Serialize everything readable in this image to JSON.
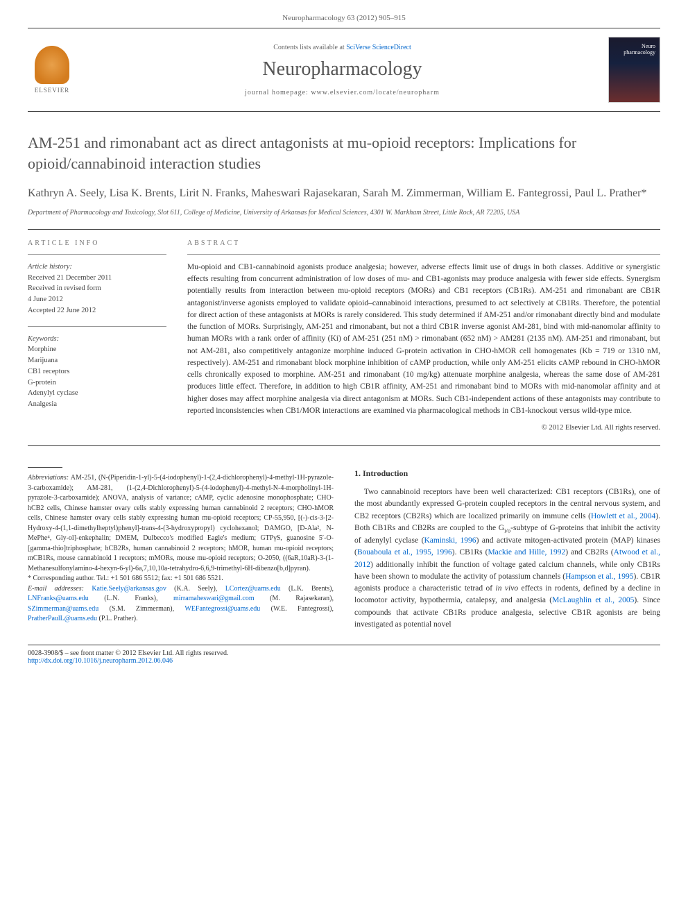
{
  "journal_ref": "Neuropharmacology 63 (2012) 905–915",
  "header": {
    "contents_prefix": "Contents lists available at ",
    "contents_link": "SciVerse ScienceDirect",
    "journal_name": "Neuropharmacology",
    "homepage_prefix": "journal homepage: ",
    "homepage_url": "www.elsevier.com/locate/neuropharm",
    "publisher": "ELSEVIER",
    "cover_label_line1": "Neuro",
    "cover_label_line2": "pharmacology"
  },
  "title": "AM-251 and rimonabant act as direct antagonists at mu-opioid receptors: Implications for opioid/cannabinoid interaction studies",
  "authors": "Kathryn A. Seely, Lisa K. Brents, Lirit N. Franks, Maheswari Rajasekaran, Sarah M. Zimmerman, William E. Fantegrossi, Paul L. Prather*",
  "affiliation": "Department of Pharmacology and Toxicology, Slot 611, College of Medicine, University of Arkansas for Medical Sciences, 4301 W. Markham Street, Little Rock, AR 72205, USA",
  "article_info": {
    "heading": "ARTICLE INFO",
    "history_label": "Article history:",
    "history": [
      "Received 21 December 2011",
      "Received in revised form",
      "4 June 2012",
      "Accepted 22 June 2012"
    ],
    "keywords_label": "Keywords:",
    "keywords": [
      "Morphine",
      "Marijuana",
      "CB1 receptors",
      "G-protein",
      "Adenylyl cyclase",
      "Analgesia"
    ]
  },
  "abstract": {
    "heading": "ABSTRACT",
    "text": "Mu-opioid and CB1-cannabinoid agonists produce analgesia; however, adverse effects limit use of drugs in both classes. Additive or synergistic effects resulting from concurrent administration of low doses of mu- and CB1-agonists may produce analgesia with fewer side effects. Synergism potentially results from interaction between mu-opioid receptors (MORs) and CB1 receptors (CB1Rs). AM-251 and rimonabant are CB1R antagonist/inverse agonists employed to validate opioid–cannabinoid interactions, presumed to act selectively at CB1Rs. Therefore, the potential for direct action of these antagonists at MORs is rarely considered. This study determined if AM-251 and/or rimonabant directly bind and modulate the function of MORs. Surprisingly, AM-251 and rimonabant, but not a third CB1R inverse agonist AM-281, bind with mid-nanomolar affinity to human MORs with a rank order of affinity (Ki) of AM-251 (251 nM) > rimonabant (652 nM) > AM281 (2135 nM). AM-251 and rimonabant, but not AM-281, also competitively antagonize morphine induced G-protein activation in CHO-hMOR cell homogenates (Kb = 719 or 1310 nM, respectively). AM-251 and rimonabant block morphine inhibition of cAMP production, while only AM-251 elicits cAMP rebound in CHO-hMOR cells chronically exposed to morphine. AM-251 and rimonabant (10 mg/kg) attenuate morphine analgesia, whereas the same dose of AM-281 produces little effect. Therefore, in addition to high CB1R affinity, AM-251 and rimonabant bind to MORs with mid-nanomolar affinity and at higher doses may affect morphine analgesia via direct antagonism at MORs. Such CB1-independent actions of these antagonists may contribute to reported inconsistencies when CB1/MOR interactions are examined via pharmacological methods in CB1-knockout versus wild-type mice.",
    "copyright": "© 2012 Elsevier Ltd. All rights reserved."
  },
  "footnotes": {
    "abbrev_label": "Abbreviations:",
    "abbrev_text": " AM-251, (N-(Piperidin-1-yl)-5-(4-iodophenyl)-1-(2,4-dichlorophenyl)-4-methyl-1H-pyrazole-3-carboxamide); AM-281, (1-(2,4-Dichlorophenyl)-5-(4-iodophenyl)-4-methyl-N-4-morpholinyl-1H-pyrazole-3-carboxamide); ANOVA, analysis of variance; cAMP, cyclic adenosine monophosphate; CHO-hCB2 cells, Chinese hamster ovary cells stably expressing human cannabinoid 2 receptors; CHO-hMOR cells, Chinese hamster ovary cells stably expressing human mu-opioid receptors; CP-55,950, [(-)-cis-3-[2-Hydroxy-4-(1,1-dimethylheptyl)phenyl]-trans-4-(3-hydroxypropyl) cyclohexanol; DAMGO, [D-Ala², N-MePhe⁴, Gly-ol]-enkephalin; DMEM, Dulbecco's modified Eagle's medium; GTPγS, guanosine 5′-O-[gamma-thio]triphosphate; hCB2Rs, human cannabinoid 2 receptors; hMOR, human mu-opioid receptors; mCB1Rs, mouse cannabinoid 1 receptors; mMORs, mouse mu-opioid receptors; O-2050, ((6aR,10aR)-3-(1-Methanesulfonylamino-4-hexyn-6-yl)-6a,7,10,10a-tetrahydro-6,6,9-trimethyl-6H-dibenzo[b,d]pyran).",
    "corr_label": "* Corresponding author. ",
    "corr_text": "Tel.: +1 501 686 5512; fax: +1 501 686 5521.",
    "email_label": "E-mail addresses:",
    "emails": " Katie.Seely@arkansas.gov (K.A. Seely), LCortez@uams.edu (L.K. Brents), LNFranks@uams.edu (L.N. Franks), mirramaheswari@gmail.com (M. Rajasekaran), SZimmerman@uams.edu (S.M. Zimmerman), WEFantegrossi@uams.edu (W.E. Fantegrossi), PratherPaulL@uams.edu (P.L. Prather)."
  },
  "intro": {
    "heading": "1. Introduction",
    "para": "Two cannabinoid receptors have been well characterized: CB1 receptors (CB1Rs), one of the most abundantly expressed G-protein coupled receptors in the central nervous system, and CB2 receptors (CB2Rs) which are localized primarily on immune cells (Howlett et al., 2004). Both CB1Rs and CB2Rs are coupled to the Gi/o-subtype of G-proteins that inhibit the activity of adenylyl cyclase (Kaminski, 1996) and activate mitogen-activated protein (MAP) kinases (Bouaboula et al., 1995, 1996). CB1Rs (Mackie and Hille, 1992) and CB2Rs (Atwood et al., 2012) additionally inhibit the function of voltage gated calcium channels, while only CB1Rs have been shown to modulate the activity of potassium channels (Hampson et al., 1995). CB1R agonists produce a characteristic tetrad of in vivo effects in rodents, defined by a decline in locomotor activity, hypothermia, catalepsy, and analgesia (McLaughlin et al., 2005). Since compounds that activate CB1Rs produce analgesia, selective CB1R agonists are being investigated as potential novel",
    "links": {
      "howlett": "Howlett et al., 2004",
      "kaminski": "Kaminski, 1996",
      "bouaboula": "Bouaboula et al., 1995, 1996",
      "mackie": "Mackie and Hille, 1992",
      "atwood": "Atwood et al., 2012",
      "hampson": "Hampson et al., 1995",
      "mclaughlin": "McLaughlin et al., 2005"
    }
  },
  "footer": {
    "line1": "0028-3908/$ – see front matter © 2012 Elsevier Ltd. All rights reserved.",
    "doi": "http://dx.doi.org/10.1016/j.neuropharm.2012.06.046"
  },
  "colors": {
    "link": "#0066cc",
    "text": "#333333",
    "muted": "#666666",
    "rule": "#333333"
  }
}
